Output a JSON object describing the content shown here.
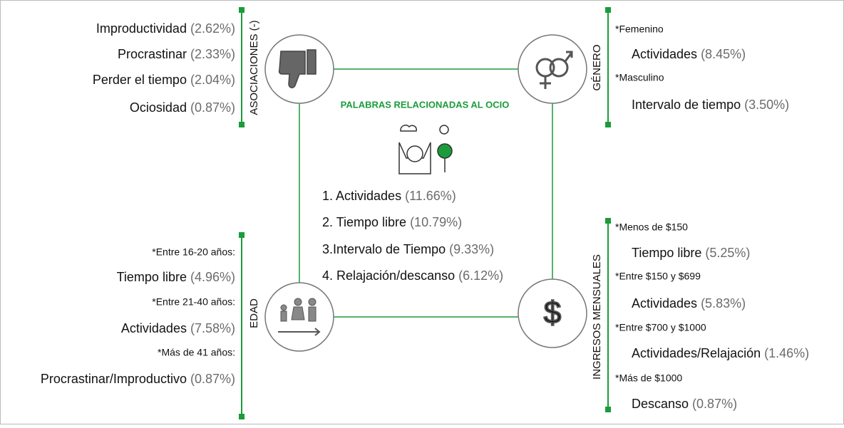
{
  "center": {
    "title": "PALABRAS RELACIONADAS AL OCIO",
    "items": [
      {
        "term": "1. Actividades",
        "pct": "(11.66%)"
      },
      {
        "term": "2. Tiempo libre",
        "pct": "(10.79%)"
      },
      {
        "term": "3.Intervalo de Tiempo",
        "pct": "(9.33%)"
      },
      {
        "term": "4. Relajación/descanso",
        "pct": "(6.12%)"
      }
    ]
  },
  "asociaciones": {
    "label": "ASOCIACIONES (-)",
    "items": [
      {
        "term": "Improductividad",
        "pct": "(2.62%)"
      },
      {
        "term": "Procrastinar",
        "pct": "(2.33%)"
      },
      {
        "term": "Perder el tiempo",
        "pct": "(2.04%)"
      },
      {
        "term": "Ociosidad",
        "pct": "(0.87%)"
      }
    ]
  },
  "genero": {
    "label": "GÉNERO",
    "groups": [
      {
        "segment": "*Femenino",
        "term": "Actividades",
        "pct": "(8.45%)"
      },
      {
        "segment": "*Masculino",
        "term": "Intervalo de tiempo",
        "pct": "(3.50%)"
      }
    ]
  },
  "edad": {
    "label": "EDAD",
    "groups": [
      {
        "segment": "*Entre 16-20 años:",
        "term": "Tiempo libre",
        "pct": "(4.96%)"
      },
      {
        "segment": "*Entre 21-40 años:",
        "term": "Actividades",
        "pct": "(7.58%)"
      },
      {
        "segment": "*Más de 41 años:",
        "term": "Procrastinar/Improductivo",
        "pct": "(0.87%)"
      }
    ]
  },
  "ingresos": {
    "label": "INGRESOS MENSUALES",
    "groups": [
      {
        "segment": "*Menos de $150",
        "term": "Tiempo libre",
        "pct": "(5.25%)"
      },
      {
        "segment": "*Entre $150 y $699",
        "term": "Actividades",
        "pct": "(5.83%)"
      },
      {
        "segment": "*Entre $700 y $1000",
        "term": "Actividades/Relajación",
        "pct": "(1.46%)"
      },
      {
        "segment": "*Más de $1000",
        "term": "Descanso",
        "pct": "(0.87%)"
      }
    ]
  }
}
